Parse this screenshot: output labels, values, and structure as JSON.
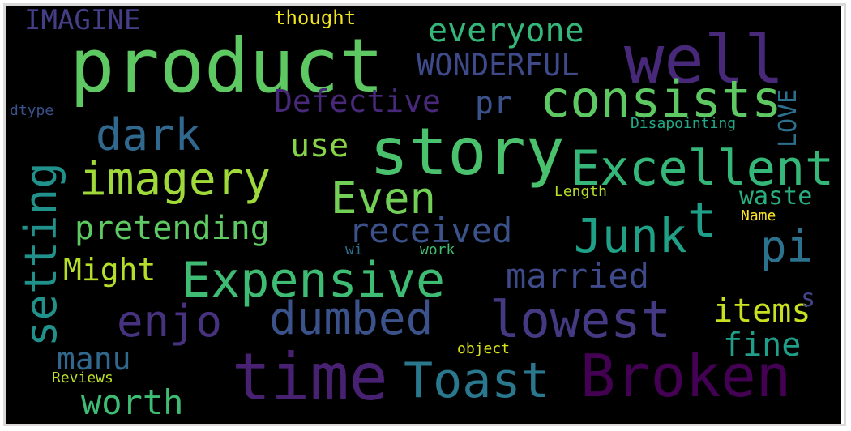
{
  "words": [
    {
      "text": "product",
      "color": "#5ec962"
    },
    {
      "text": "story",
      "color": "#4ac16d"
    },
    {
      "text": "well",
      "color": "#482878"
    },
    {
      "text": "Broken",
      "color": "#440154"
    },
    {
      "text": "time",
      "color": "#482173"
    },
    {
      "text": "consists",
      "color": "#5ec962"
    },
    {
      "text": "Excellent",
      "color": "#35b779"
    },
    {
      "text": "Expensive",
      "color": "#3fbc73"
    },
    {
      "text": "imagery",
      "color": "#9fda3a"
    },
    {
      "text": "Toast",
      "color": "#2a788e"
    },
    {
      "text": "dumbed",
      "color": "#3b528b"
    },
    {
      "text": "lowest",
      "color": "#443983"
    },
    {
      "text": "Junk",
      "color": "#1fa187"
    },
    {
      "text": "setting",
      "color": "#21918c"
    },
    {
      "text": "dark",
      "color": "#31688e"
    },
    {
      "text": "Even",
      "color": "#73d056"
    },
    {
      "text": "enjo",
      "color": "#46327e"
    },
    {
      "text": "pi",
      "color": "#2c728e"
    },
    {
      "text": "worth",
      "color": "#3fbc73"
    },
    {
      "text": "married",
      "color": "#3e4a89"
    },
    {
      "text": "received",
      "color": "#3b528b"
    },
    {
      "text": "pretending",
      "color": "#5ec962"
    },
    {
      "text": "Might",
      "color": "#b5de2b"
    },
    {
      "text": "everyone",
      "color": "#35b779"
    },
    {
      "text": "WONDERFUL",
      "color": "#3e4a89"
    },
    {
      "text": "Defective",
      "color": "#482878"
    },
    {
      "text": "IMAGINE",
      "color": "#433e85"
    },
    {
      "text": "manu",
      "color": "#31688e"
    },
    {
      "text": "fine",
      "color": "#1f9e89"
    },
    {
      "text": "items",
      "color": "#c8e020"
    },
    {
      "text": "use",
      "color": "#86d549"
    },
    {
      "text": "waste",
      "color": "#29af7f"
    },
    {
      "text": "t",
      "color": "#1f9e89"
    },
    {
      "text": "pr",
      "color": "#3b528b"
    },
    {
      "text": "LOVE",
      "color": "#2d708e"
    },
    {
      "text": "s",
      "color": "#414487"
    },
    {
      "text": "thought",
      "color": "#f1e51d"
    },
    {
      "text": "Disapointing",
      "color": "#22a884"
    },
    {
      "text": "Length",
      "color": "#b5de2b"
    },
    {
      "text": "Name",
      "color": "#fde725"
    },
    {
      "text": "work",
      "color": "#3fbc73"
    },
    {
      "text": "wi",
      "color": "#2e6e8e"
    },
    {
      "text": "object",
      "color": "#d8e219"
    },
    {
      "text": "Reviews",
      "color": "#bddf26"
    },
    {
      "text": "dtype",
      "color": "#3b528b"
    }
  ]
}
